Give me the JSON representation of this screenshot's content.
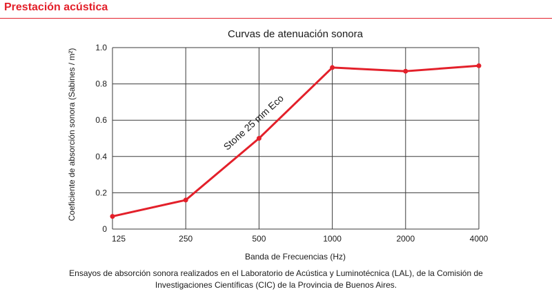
{
  "header": {
    "title": "Prestación acústica",
    "accent_color": "#e3202a"
  },
  "chart_data": {
    "type": "line",
    "title": "Curvas de atenuación sonora",
    "xlabel": "Banda de Frecuencias (Hz)",
    "ylabel": "Coeficiente de absorción sonora (Sabines / m²)",
    "categories": [
      "125",
      "250",
      "500",
      "1000",
      "2000",
      "4000"
    ],
    "ylim": [
      0,
      1.0
    ],
    "yticks": [
      "0",
      "0.2",
      "0.4",
      "0.6",
      "0.8",
      "1.0"
    ],
    "grid": true,
    "series": [
      {
        "name": "Stone 25 mm Eco",
        "values": [
          0.07,
          0.16,
          0.5,
          0.89,
          0.87,
          0.9
        ],
        "color": "#e3202a"
      }
    ]
  },
  "footnote": {
    "line1": "Ensayos de absorción sonora realizados en el Laboratorio de Acústica y Luminotécnica (LAL), de la Comisión de",
    "line2": "Investigaciones Científicas (CIC) de la Provincia de Buenos Aires."
  }
}
